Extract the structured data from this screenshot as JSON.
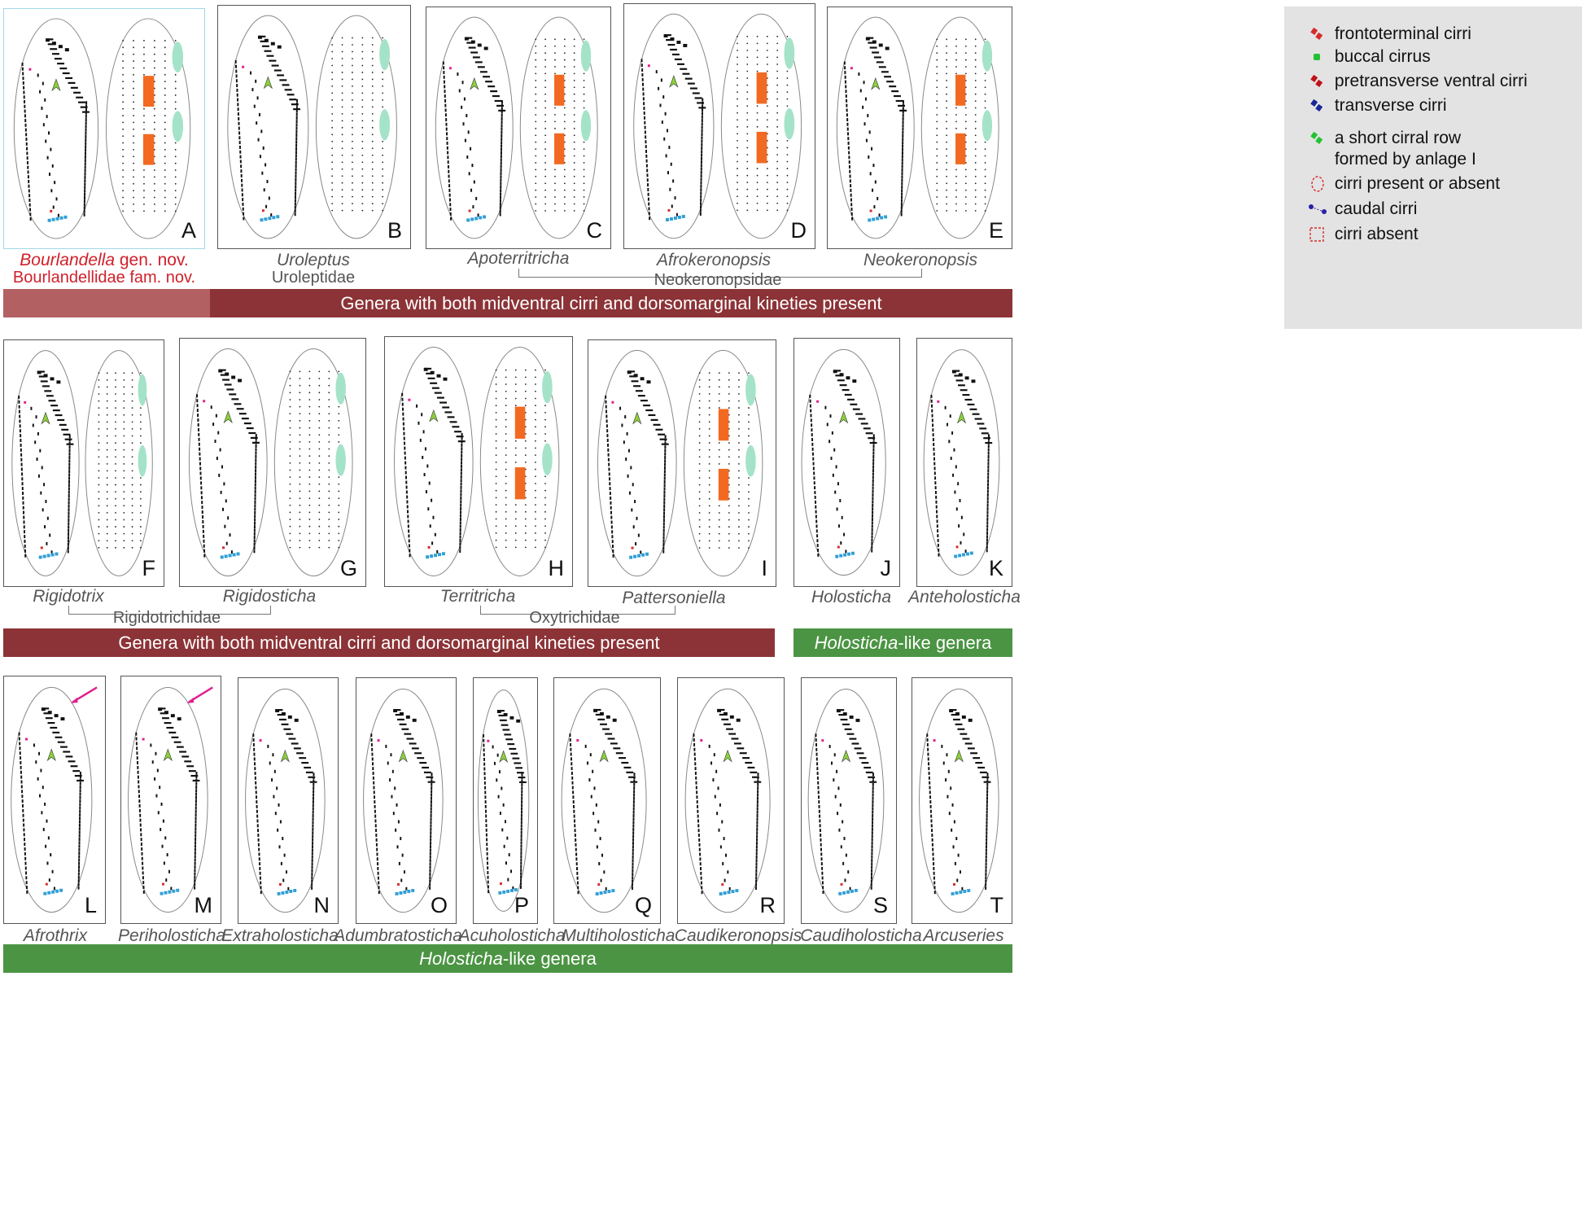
{
  "legend": {
    "items": [
      {
        "label": "frontoterminal cirri",
        "color": "#d62a2a",
        "shape": "dash"
      },
      {
        "label": "buccal cirrus",
        "color": "#22c232",
        "shape": "dot"
      },
      {
        "label": "pretransverse ventral cirri",
        "color": "#c0121a",
        "shape": "dash"
      },
      {
        "label": "transverse cirri",
        "color": "#17269a",
        "shape": "dash"
      },
      {
        "label": "a short cirral row",
        "color": "#22c232",
        "shape": "dash"
      },
      {
        "label": "formed by anlage I",
        "color": "",
        "shape": "none"
      },
      {
        "label": "cirri present or absent",
        "color": "#d62a2a",
        "shape": "ellipse-dashed"
      },
      {
        "label": "caudal cirri",
        "color": "#2a1fa8",
        "shape": "caudal"
      },
      {
        "label": "cirri absent",
        "color": "#d62a2a",
        "shape": "rect-dashed"
      }
    ]
  },
  "colors": {
    "banner_dark": "#8c3337",
    "banner_light": "#b36063",
    "banner_green": "#4b9443",
    "midventral_block": "#f26a22",
    "dorsal_green": "#a4e3c8",
    "transverse": "#2f9fd6",
    "frontoterminal": "#e0208f",
    "buccal": "#8cd23c"
  },
  "panels": [
    {
      "letter": "A",
      "views": 2
    },
    {
      "letter": "B",
      "views": 2
    },
    {
      "letter": "C",
      "views": 2
    },
    {
      "letter": "D",
      "views": 2
    },
    {
      "letter": "E",
      "views": 2
    },
    {
      "letter": "F",
      "views": 2
    },
    {
      "letter": "G",
      "views": 2
    },
    {
      "letter": "H",
      "views": 2
    },
    {
      "letter": "I",
      "views": 2
    },
    {
      "letter": "J",
      "views": 1
    },
    {
      "letter": "K",
      "views": 1
    },
    {
      "letter": "L",
      "views": 1
    },
    {
      "letter": "M",
      "views": 1
    },
    {
      "letter": "N",
      "views": 1
    },
    {
      "letter": "O",
      "views": 1
    },
    {
      "letter": "P",
      "views": 1
    },
    {
      "letter": "Q",
      "views": 1
    },
    {
      "letter": "R",
      "views": 1
    },
    {
      "letter": "S",
      "views": 1
    },
    {
      "letter": "T",
      "views": 1
    }
  ],
  "genera": {
    "A_genus": "Bourlandella",
    "A_suffix": " gen. nov.",
    "A_family": "Bourlandellidae fam. nov.",
    "B": "Uroleptus",
    "B_family": "Uroleptidae",
    "C": "Apoterritricha",
    "D": "Afrokeronopsis",
    "E": "Neokeronopsis",
    "CDE_family": "Neokeronopsidae",
    "F": "Rigidotrix",
    "G": "Rigidosticha",
    "FG_family": "Rigidotrichidae",
    "H": "Territricha",
    "I": "Pattersoniella",
    "HI_family": "Oxytrichidae",
    "J": "Holosticha",
    "K": "Anteholosticha",
    "L": "Afrothrix",
    "M": "Periholosticha",
    "N": "Extraholosticha",
    "O": "Adumbratosticha",
    "P": "Acuholosticha",
    "Q": "Multiholosticha",
    "R": "Caudikeronopsis",
    "S": "Caudiholosticha",
    "T": "Arcuseries"
  },
  "banners": {
    "row1": "Genera with both midventral cirri and dorsomarginal kineties present",
    "row2_left": "Genera with both midventral cirri and dorsomarginal kineties present",
    "row2_right_italic": "Holosticha",
    "row2_right_rest": "-like genera",
    "row3_italic": "Holosticha",
    "row3_rest": "-like genera"
  }
}
